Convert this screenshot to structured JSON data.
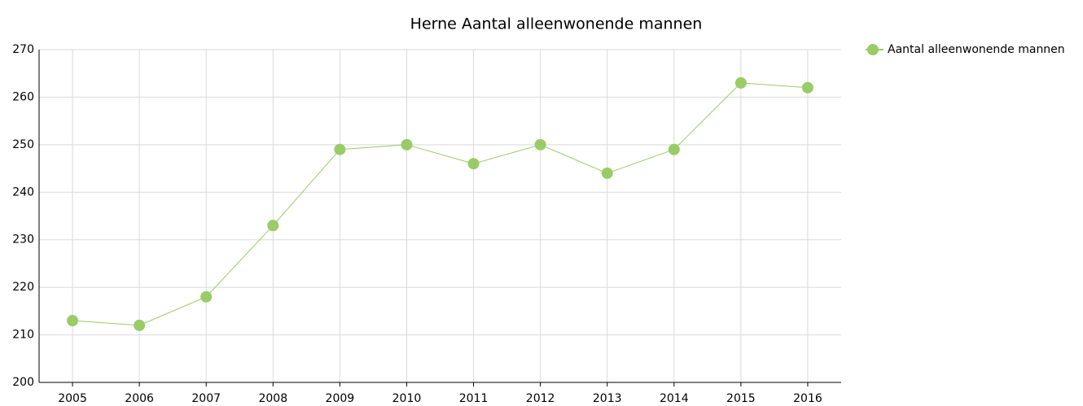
{
  "chart_data": {
    "type": "line",
    "title": "Herne  Aantal alleenwonende mannen",
    "categories": [
      "2005",
      "2006",
      "2007",
      "2008",
      "2009",
      "2010",
      "2011",
      "2012",
      "2013",
      "2014",
      "2015",
      "2016"
    ],
    "series": [
      {
        "name": "Aantal alleenwonende mannen",
        "color": "#99cc66",
        "values": [
          213,
          212,
          218,
          233,
          249,
          250,
          246,
          250,
          244,
          249,
          263,
          262
        ]
      }
    ],
    "ylim": [
      200,
      270
    ],
    "yticks": [
      200,
      210,
      220,
      230,
      240,
      250,
      260,
      270
    ],
    "grid": true,
    "legend": "right"
  }
}
